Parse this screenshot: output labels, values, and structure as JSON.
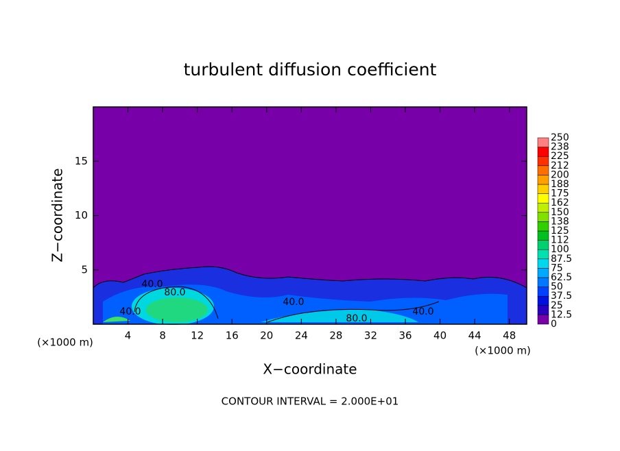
{
  "chart_data": {
    "type": "contour",
    "title": "turbulent diffusion coefficient",
    "x_label": "X−coordinate",
    "y_label": "Z−coordinate",
    "x_unit_label": "(×1000 m)",
    "y_unit_label": "(×1000 m)",
    "footnote": "CONTOUR INTERVAL = 2.000E+01",
    "xlim": [
      0,
      50
    ],
    "xticks": [
      4,
      8,
      12,
      16,
      20,
      24,
      28,
      32,
      36,
      40,
      44,
      48
    ],
    "ylim": [
      0,
      20
    ],
    "yticks": [
      5,
      10,
      15
    ],
    "contour_labels": [
      "40.0",
      "80.0",
      "40.0",
      "80.0",
      "40.0",
      "40.0"
    ],
    "colorbar": {
      "levels": [
        0,
        12.5,
        25,
        37.5,
        50,
        62.5,
        75,
        87.5,
        100,
        {
          "value": 112.5,
          "label": "112"
        },
        125,
        {
          "value": 137.5,
          "label": "138"
        },
        150,
        {
          "value": 162.5,
          "label": "162"
        },
        175,
        {
          "value": 187.5,
          "label": "188"
        },
        200,
        {
          "value": 212.5,
          "label": "212"
        },
        225,
        {
          "value": 237.5,
          "label": "238"
        },
        250
      ],
      "colors": [
        "#7800a8",
        "#2a00c0",
        "#0010e0",
        "#0040ff",
        "#0078ff",
        "#00a8ff",
        "#00d8f0",
        "#00e0b0",
        "#00d070",
        "#00c020",
        "#30d000",
        "#80e000",
        "#c0f000",
        "#ffff00",
        "#ffd000",
        "#ffa000",
        "#ff7000",
        "#ff3000",
        "#ff0000",
        "#ff8080"
      ]
    }
  }
}
